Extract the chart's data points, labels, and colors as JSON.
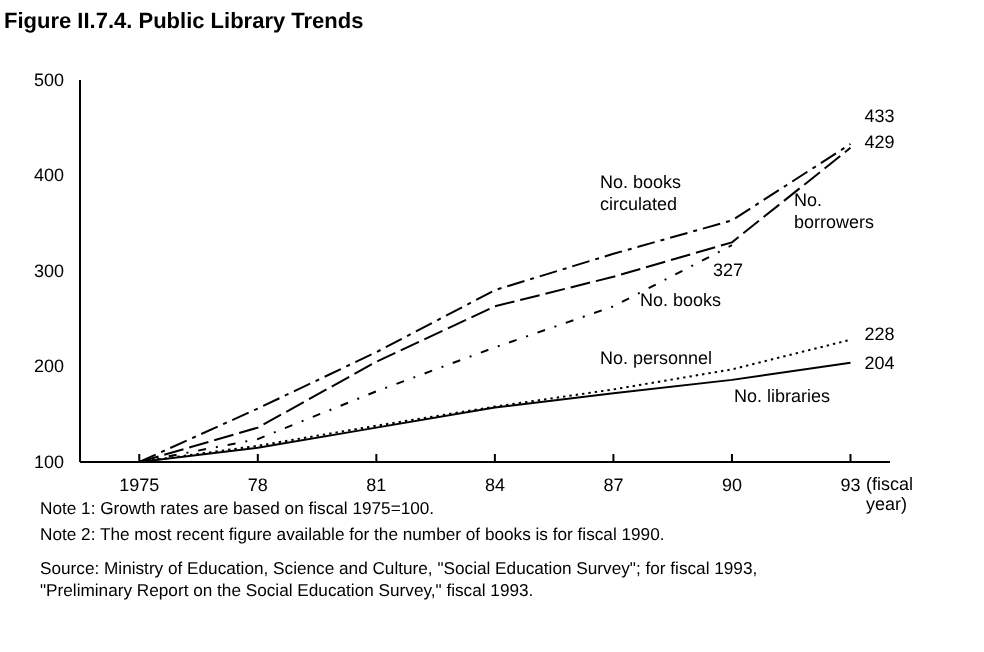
{
  "chart_data": {
    "type": "line",
    "title": "Figure II.7.4. Public Library Trends",
    "xlabel": "(fiscal year)",
    "x": [
      1975,
      1978,
      1981,
      1984,
      1987,
      1990,
      1993
    ],
    "xlim": [
      1973.5,
      1994
    ],
    "xticks": [
      1975,
      {
        "value": 1978,
        "label": "78"
      },
      {
        "value": 1981,
        "label": "81"
      },
      {
        "value": 1984,
        "label": "84"
      },
      {
        "value": 1987,
        "label": "87"
      },
      {
        "value": 1990,
        "label": "90"
      },
      {
        "value": 1993,
        "label": "93"
      }
    ],
    "ylim": [
      100,
      500
    ],
    "yticks": [
      100,
      200,
      300,
      400,
      500
    ],
    "series": [
      {
        "name": "No. books circulated",
        "color": "#000000",
        "line_style": "dashed",
        "values": [
          100,
          156,
          215,
          280,
          318,
          353,
          433
        ],
        "value_labels": [
          null,
          null,
          null,
          null,
          null,
          null,
          "433"
        ]
      },
      {
        "name": "No. borrowers",
        "color": "#000000",
        "line_style": "dashed",
        "values": [
          100,
          136,
          205,
          263,
          294,
          330,
          429
        ],
        "value_labels": [
          null,
          null,
          null,
          null,
          null,
          null,
          "429"
        ]
      },
      {
        "name": "No. books",
        "color": "#000000",
        "line_style": "dashed",
        "values": [
          100,
          124,
          174,
          220,
          263,
          327,
          null
        ],
        "value_labels": [
          null,
          null,
          null,
          null,
          null,
          "327",
          null
        ]
      },
      {
        "name": "No. personnel",
        "color": "#000000",
        "line_style": "dotted",
        "values": [
          100,
          117,
          138,
          158,
          176,
          197,
          228
        ],
        "value_labels": [
          null,
          null,
          null,
          null,
          null,
          null,
          "228"
        ]
      },
      {
        "name": "No. libraries",
        "color": "#000000",
        "line_style": "solid",
        "values": [
          100,
          115,
          136,
          157,
          172,
          186,
          204
        ],
        "value_labels": [
          null,
          null,
          null,
          null,
          null,
          null,
          "204"
        ]
      }
    ],
    "annotations": [
      "Note 1: Growth rates are based on fiscal 1975=100.",
      "Note 2: The most recent figure available for the number of books is for fiscal 1990.",
      "Source: Ministry of Education, Science and Culture, \"Social Education Survey\"; for fiscal 1993, \"Preliminary Report on the Social Education Survey,\" fiscal 1993."
    ]
  }
}
